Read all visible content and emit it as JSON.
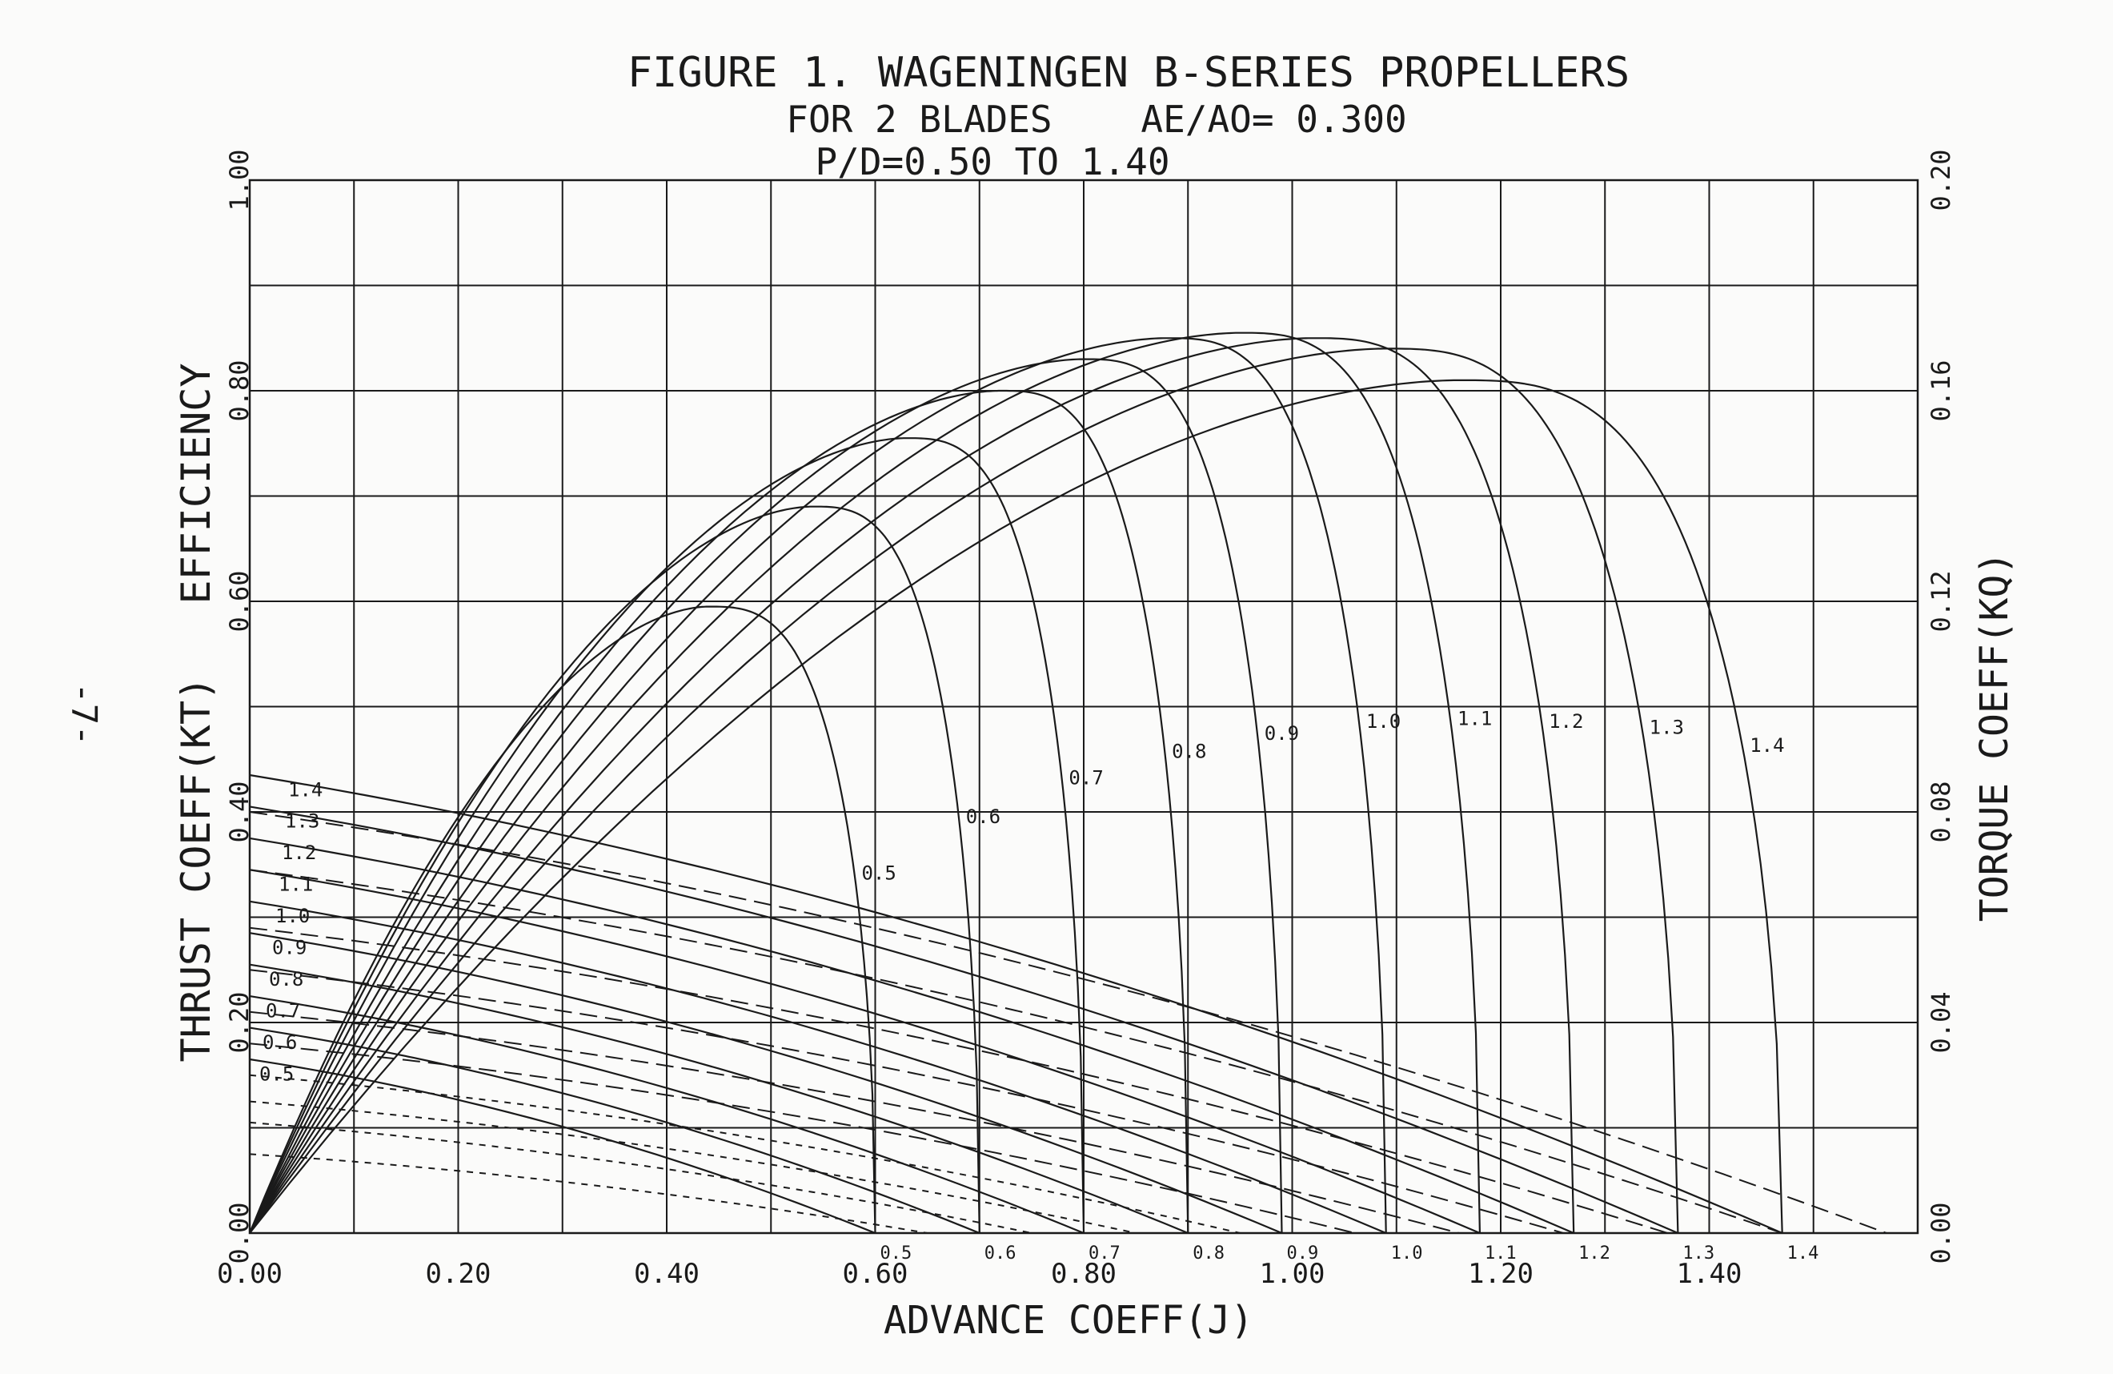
{
  "page_number": "-7-",
  "chart_data": {
    "type": "line",
    "title": "FIGURE 1. WAGENINGEN B-SERIES PROPELLERS",
    "subtitle_line1": "FOR 2 BLADES    AE/AO= 0.300",
    "subtitle_line2": "P/D=0.50 TO 1.40",
    "xlabel": "ADVANCE COEFF(J)",
    "ylabel_left": "THRUST COEFF(KT)   EFFICIENCY",
    "ylabel_right": "TORQUE COEFF(KQ)",
    "xlim": [
      0,
      1.6
    ],
    "ylim_left": [
      0,
      1.0
    ],
    "ylim_right": [
      0,
      0.2
    ],
    "grid": true,
    "x_ticks": [
      "0.00",
      "0.20",
      "0.40",
      "0.60",
      "0.80",
      "1.00",
      "1.20",
      "1.40"
    ],
    "y_left_ticks": [
      "0.00",
      "0.20",
      "0.40",
      "0.60",
      "0.80",
      "1.00"
    ],
    "y_right_ticks": [
      "0.00",
      "0.04",
      "0.08",
      "0.12",
      "0.16",
      "0.20"
    ],
    "pitch_ratios": [
      0.5,
      0.6,
      0.7,
      0.8,
      0.9,
      1.0,
      1.1,
      1.2,
      1.3,
      1.4
    ],
    "efficiency": {
      "peak_J": [
        0.44,
        0.54,
        0.63,
        0.72,
        0.8,
        0.88,
        0.95,
        1.02,
        1.09,
        1.16
      ],
      "peak_eta": [
        0.595,
        0.69,
        0.755,
        0.8,
        0.83,
        0.85,
        0.855,
        0.85,
        0.84,
        0.81
      ],
      "zero_J": [
        0.6,
        0.7,
        0.8,
        0.9,
        0.99,
        1.09,
        1.18,
        1.27,
        1.37,
        1.47
      ]
    },
    "series": [
      {
        "name": "0.5",
        "kt0": 0.165,
        "kt_zero_J": 0.6,
        "kq0": 0.015,
        "kq_zero_J": 0.65
      },
      {
        "name": "0.6",
        "kt0": 0.195,
        "kt_zero_J": 0.7,
        "kq0": 0.021,
        "kq_zero_J": 0.75
      },
      {
        "name": "0.7",
        "kt0": 0.225,
        "kt_zero_J": 0.8,
        "kq0": 0.025,
        "kq_zero_J": 0.85
      },
      {
        "name": "0.8",
        "kt0": 0.255,
        "kt_zero_J": 0.9,
        "kq0": 0.03,
        "kq_zero_J": 0.95
      },
      {
        "name": "0.9",
        "kt0": 0.285,
        "kt_zero_J": 0.99,
        "kq0": 0.036,
        "kq_zero_J": 1.06
      },
      {
        "name": "1.0",
        "kt0": 0.315,
        "kt_zero_J": 1.09,
        "kq0": 0.042,
        "kq_zero_J": 1.16
      },
      {
        "name": "1.1",
        "kt0": 0.345,
        "kt_zero_J": 1.18,
        "kq0": 0.05,
        "kq_zero_J": 1.26
      },
      {
        "name": "1.2",
        "kt0": 0.375,
        "kt_zero_J": 1.27,
        "kq0": 0.058,
        "kq_zero_J": 1.36
      },
      {
        "name": "1.3",
        "kt0": 0.405,
        "kt_zero_J": 1.37,
        "kq0": 0.069,
        "kq_zero_J": 1.47
      },
      {
        "name": "1.4",
        "kt0": 0.435,
        "kt_zero_J": 1.47,
        "kq0": 0.08,
        "kq_zero_J": 1.57
      }
    ]
  }
}
